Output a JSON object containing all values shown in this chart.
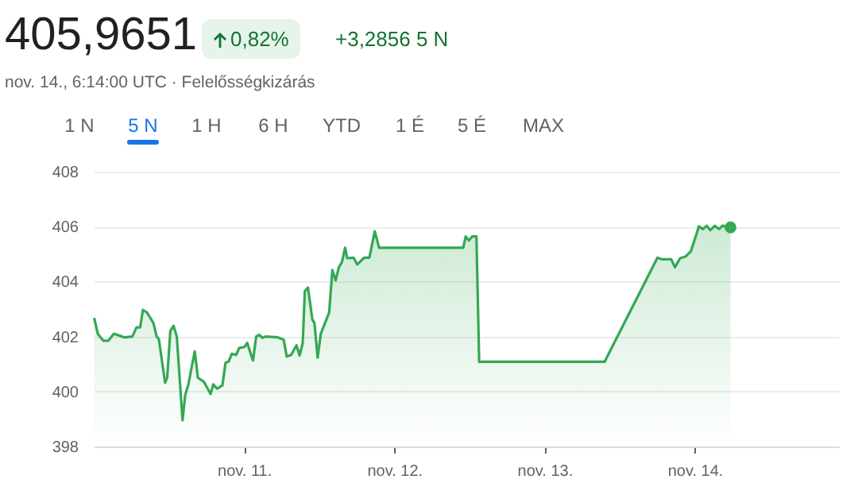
{
  "chart_data": {
    "type": "area",
    "title": "405,9651",
    "subtitle": "nov. 14., 6:14:00 UTC · Felelősségkizárás",
    "annotations": [
      "0,82%",
      "+3,2856 5 N",
      "1 N",
      "5 N",
      "1 H",
      "6 H",
      "YTD",
      "1 É",
      "5 É",
      "MAX"
    ],
    "x": [
      "--11-10T00:04",
      "--11-10T00:39",
      "--11-10T01:31",
      "--11-10T02:21",
      "--11-10T03:12",
      "--11-10T04:02",
      "--11-10T04:54",
      "--11-10T06:10",
      "--11-10T06:50",
      "--11-10T07:25",
      "--11-10T07:51",
      "--11-10T08:31",
      "--11-10T09:32",
      "--11-10T10:03",
      "--11-10T10:24",
      "--11-10T11:24",
      "--11-10T11:44",
      "--11-10T12:14",
      "--11-10T12:45",
      "--11-10T13:16",
      "--11-10T14:11",
      "--11-10T14:37",
      "--11-10T15:07",
      "--11-10T16:08",
      "--11-10T16:38",
      "--11-10T17:34",
      "--11-10T18:40",
      "--11-10T19:06",
      "--11-10T19:41",
      "--11-10T20:33",
      "--11-10T21:03",
      "--11-10T21:33",
      "--11-10T22:03",
      "--11-10T22:44",
      "--11-10T23:14",
      "--11-11T00:06",
      "--11-11T00:30",
      "--11-11T01:26",
      "--11-11T01:57",
      "--11-11T02:27",
      "--11-11T02:57",
      "--11-11T03:27",
      "--11-11T05:25",
      "--11-11T06:20",
      "--11-11T06:50",
      "--11-11T07:32",
      "--11-11T08:23",
      "--11-11T08:53",
      "--11-11T09:23",
      "--11-11T09:43",
      "--11-11T10:13",
      "--11-11T10:55",
      "--11-11T11:15",
      "--11-11T11:46",
      "--11-11T12:16",
      "--11-11T13:36",
      "--11-11T14:07",
      "--11-11T14:38",
      "--11-11T15:09",
      "--11-11T15:39",
      "--11-11T16:09",
      "--11-11T16:29",
      "--11-11T17:30",
      "--11-11T18:06",
      "--11-11T19:12",
      "--11-11T20:02",
      "--11-11T20:53",
      "--11-11T21:35",
      "--11-12T11:01",
      "--11-12T11:25",
      "--11-12T11:56",
      "--11-12T12:26",
      "--11-12T13:08",
      "--11-12T13:34",
      "--11-13T09:36",
      "--11-13T18:03",
      "--11-13T18:43",
      "--11-13T20:15",
      "--11-13T20:50",
      "--11-13T21:40",
      "--11-13T22:32",
      "--11-13T23:23",
      "--11-14T00:13",
      "--11-14T00:39",
      "--11-14T01:19",
      "--11-14T01:55",
      "--11-14T02:30",
      "--11-14T03:12",
      "--11-14T03:52",
      "--11-14T04:26",
      "--11-14T05:43"
    ],
    "series": [
      {
        "color": "#34a853",
        "values": [
          402.68,
          402.1,
          401.85,
          401.85,
          402.1,
          402.04,
          401.97,
          402.0,
          402.33,
          402.33,
          402.97,
          402.87,
          402.49,
          402.0,
          401.9,
          400.32,
          400.5,
          402.2,
          402.39,
          402.0,
          398.95,
          399.88,
          400.26,
          401.46,
          400.5,
          400.36,
          399.91,
          400.26,
          400.1,
          400.22,
          401.04,
          401.09,
          401.37,
          401.33,
          401.58,
          401.62,
          401.77,
          401.13,
          402.0,
          402.06,
          401.95,
          402.0,
          401.97,
          401.89,
          401.27,
          401.33,
          401.68,
          401.31,
          401.77,
          403.65,
          403.78,
          402.62,
          402.49,
          401.23,
          402.1,
          402.87,
          404.42,
          404.04,
          404.52,
          404.71,
          405.23,
          404.85,
          404.87,
          404.62,
          404.87,
          404.87,
          405.83,
          405.23,
          405.23,
          405.64,
          405.49,
          405.64,
          405.64,
          401.08,
          401.08,
          404.87,
          404.81,
          404.81,
          404.52,
          404.85,
          404.91,
          405.1,
          405.68,
          406.01,
          405.91,
          406.03,
          405.87,
          406.03,
          405.91,
          406.03,
          405.97
        ]
      }
    ],
    "xlim": [
      "--11-10T00:00",
      "--11-14T23:02"
    ],
    "xticks": [
      {
        "value": "--11-11",
        "label": "nov. 11."
      },
      {
        "value": "--11-12",
        "label": "nov. 12."
      },
      {
        "value": "--11-13",
        "label": "nov. 13."
      },
      {
        "value": "--11-14",
        "label": "nov. 14."
      }
    ],
    "ylim": [
      398,
      408
    ],
    "yticks": [
      398,
      400,
      402,
      404,
      406,
      408
    ],
    "grid": "y",
    "line_style": "solid"
  }
}
